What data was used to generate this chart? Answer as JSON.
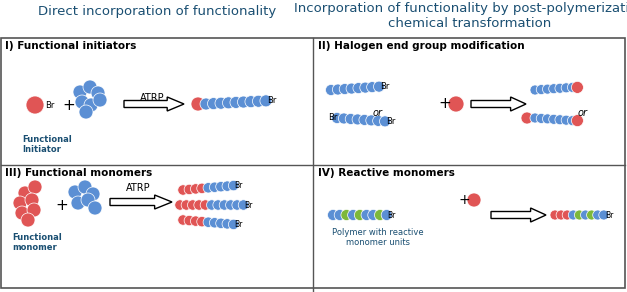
{
  "title_left": "Direct incorporation of functionality",
  "title_right": "Incorporation of functionality by post-polymerization\nchemical transformation",
  "title_color": "#1a4f72",
  "title_fontsize": 9.5,
  "section_label_fontsize": 7.5,
  "bg_color": "#ffffff",
  "border_color": "#555555",
  "blue": "#5b8fd4",
  "red": "#e05555",
  "green": "#7db83a",
  "label_color": "#1a4f72",
  "sections": [
    "I) Functional initiators",
    "II) Halogen end group modification",
    "III) Functional monomers",
    "IV) Reactive monomers"
  ],
  "fig_width": 6.27,
  "fig_height": 2.92,
  "dpi": 100
}
